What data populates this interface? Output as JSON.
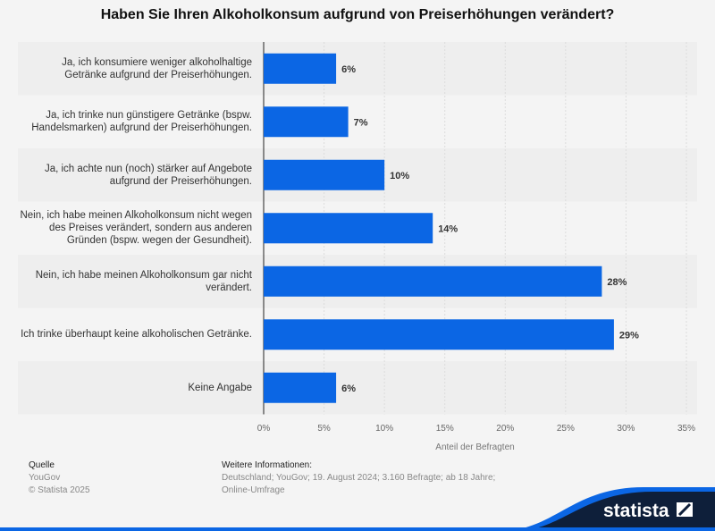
{
  "chart_data": {
    "type": "bar",
    "orientation": "horizontal",
    "title": "Haben Sie Ihren Alkoholkonsum aufgrund von Preiserhöhungen verändert?",
    "categories": [
      "Ja, ich konsumiere weniger alkoholhaltige Getränke aufgrund der Preiserhöhungen.",
      "Ja, ich trinke nun günstigere Getränke (bspw. Handelsmarken) aufgrund der Preiserhöhungen.",
      "Ja, ich achte nun (noch) stärker auf Angebote aufgrund der Preiserhöhungen.",
      "Nein, ich habe meinen Alkoholkonsum nicht wegen des Preises verändert, sondern aus anderen Gründen (bspw. wegen der Gesundheit).",
      "Nein, ich habe meinen Alkoholkonsum gar nicht verändert.",
      "Ich trinke überhaupt keine alkoholischen Getränke.",
      "Keine Angabe"
    ],
    "values": [
      6,
      7,
      10,
      14,
      28,
      29,
      6
    ],
    "data_labels": [
      "6%",
      "7%",
      "10%",
      "14%",
      "28%",
      "29%",
      "6%"
    ],
    "xlabel": "Anteil der Befragten",
    "xlim": [
      0,
      35
    ],
    "xticks": [
      "0%",
      "5%",
      "10%",
      "15%",
      "20%",
      "25%",
      "30%",
      "35%"
    ],
    "grid": true,
    "bar_color": "#0b66e4"
  },
  "footer": {
    "source_heading": "Quelle",
    "source": "YouGov",
    "copyright": "© Statista 2025",
    "info_heading": "Weitere Informationen:",
    "info_line1": "Deutschland; YouGov; 19. August 2024; 3.160 Befragte; ab 18 Jahre;",
    "info_line2": "Online-Umfrage",
    "logo": "statista"
  }
}
